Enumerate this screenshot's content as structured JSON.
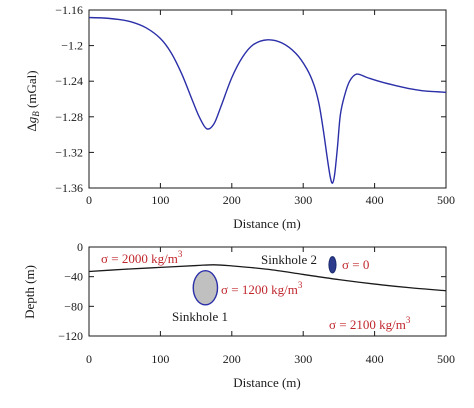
{
  "chart_data": [
    {
      "type": "line",
      "xlabel": "Distance (m)",
      "ylabel": "Δg_B (mGal)",
      "xlim": [
        0,
        500
      ],
      "ylim": [
        -1.36,
        -1.16
      ],
      "xticks": [
        "0",
        "100",
        "200",
        "300",
        "400",
        "500"
      ],
      "yticks": [
        "−1.16",
        "−1.2",
        "−1.24",
        "−1.28",
        "−1.32",
        "−1.36"
      ],
      "yticks_values": [
        -1.16,
        -1.2,
        -1.24,
        -1.28,
        -1.32,
        -1.36
      ],
      "xticks_values": [
        0,
        100,
        200,
        300,
        400,
        500
      ],
      "grid": false,
      "line_color": "#2b2fa8",
      "series": [
        {
          "x": [
            0,
            20,
            40,
            60,
            80,
            100,
            115,
            130,
            145,
            155,
            165,
            175,
            185,
            200,
            215,
            230,
            250,
            270,
            290,
            305,
            315,
            322,
            328,
            334,
            338,
            341,
            344,
            348,
            352,
            358,
            365,
            375,
            390,
            410,
            430,
            450,
            470,
            500
          ],
          "y": [
            -1.1685,
            -1.169,
            -1.1705,
            -1.1735,
            -1.18,
            -1.192,
            -1.208,
            -1.232,
            -1.262,
            -1.281,
            -1.2935,
            -1.288,
            -1.268,
            -1.236,
            -1.213,
            -1.199,
            -1.1935,
            -1.197,
            -1.209,
            -1.226,
            -1.244,
            -1.265,
            -1.294,
            -1.328,
            -1.348,
            -1.3545,
            -1.345,
            -1.314,
            -1.278,
            -1.256,
            -1.24,
            -1.232,
            -1.236,
            -1.241,
            -1.245,
            -1.2485,
            -1.251,
            -1.2525
          ]
        }
      ]
    },
    {
      "type": "line",
      "xlabel": "Distance (m)",
      "ylabel": "Depth (m)",
      "xlim": [
        0,
        500
      ],
      "ylim": [
        -120,
        0
      ],
      "xticks": [
        "0",
        "100",
        "200",
        "300",
        "400",
        "500"
      ],
      "yticks": [
        "0",
        "−40",
        "−80",
        "−120"
      ],
      "yticks_values": [
        0,
        -40,
        -80,
        -120
      ],
      "xticks_values": [
        0,
        100,
        200,
        300,
        400,
        500
      ],
      "grid": false,
      "series": [
        {
          "x": [
            0,
            50,
            100,
            150,
            175,
            200,
            250,
            300,
            350,
            400,
            450,
            500
          ],
          "y": [
            -33,
            -30,
            -27.5,
            -25,
            -24,
            -25.5,
            -30,
            -37,
            -44,
            -50,
            -55,
            -59
          ]
        }
      ],
      "features": [
        {
          "label": "Sinkhole 1",
          "cx": 163,
          "cy": -55,
          "rx": 17,
          "ry": 23,
          "fill": "#c0c0c0",
          "stroke": "#2b2fa8"
        },
        {
          "label": "Sinkhole 2",
          "cx": 341,
          "cy": -24,
          "rx": 5,
          "ry": 11,
          "fill": "#2d3b8c",
          "stroke": "#1a2a6e"
        }
      ],
      "annotations": {
        "sigma_top": "σ = 2000 kg/m",
        "sigma_sinkhole1": "σ = 1200 kg/m",
        "sigma_sinkhole2": "σ = 0",
        "sigma_bottom": "σ = 2100 kg/m",
        "unit_exponent": "3",
        "sinkhole1_label": "Sinkhole 1",
        "sinkhole2_label": "Sinkhole 2"
      },
      "annotation_color": "#c0272d"
    }
  ]
}
